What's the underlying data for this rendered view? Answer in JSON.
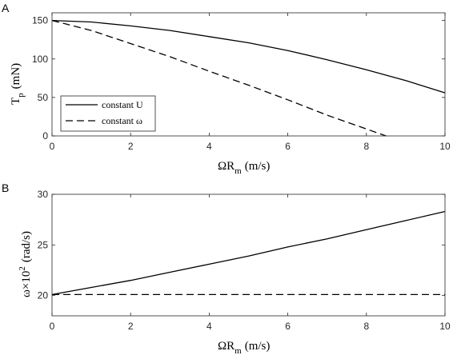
{
  "chart_data": [
    {
      "panel_label": "A",
      "type": "line",
      "xlabel": "ΩR",
      "xlabel_sub": "m",
      "xlabel_unit": "(m/s)",
      "ylabel": "T",
      "ylabel_sub": "p",
      "ylabel_unit": "(mN)",
      "xlim": [
        0,
        10
      ],
      "ylim": [
        0,
        160
      ],
      "xticks": [
        "0",
        "2",
        "4",
        "6",
        "8",
        "10"
      ],
      "yticks": [
        "0",
        "50",
        "100",
        "150"
      ],
      "legend_position": "bottom-left",
      "series": [
        {
          "name": "constant U",
          "style": "solid",
          "x": [
            0,
            1,
            2,
            3,
            4,
            5,
            6,
            7,
            8,
            9,
            10
          ],
          "y": [
            150,
            148,
            143,
            137,
            129,
            121,
            111,
            99,
            86,
            72,
            56
          ]
        },
        {
          "name": "constant ω",
          "style": "dashed",
          "x": [
            0,
            1,
            2,
            3,
            4,
            5,
            6,
            7,
            8,
            8.5
          ],
          "y": [
            150,
            137,
            120,
            103,
            84,
            66,
            47,
            27,
            9,
            0
          ]
        }
      ]
    },
    {
      "panel_label": "B",
      "type": "line",
      "xlabel": "ΩR",
      "xlabel_sub": "m",
      "xlabel_unit": "(m/s)",
      "ylabel": "ω×10",
      "ylabel_sup": "2",
      "ylabel_unit": "(rad/s)",
      "xlim": [
        0,
        10
      ],
      "ylim": [
        18,
        30
      ],
      "xticks": [
        "0",
        "2",
        "4",
        "6",
        "8",
        "10"
      ],
      "yticks": [
        "20",
        "25",
        "30"
      ],
      "series": [
        {
          "style": "solid",
          "x": [
            0,
            1,
            2,
            3,
            4,
            5,
            6,
            7,
            8,
            9,
            10
          ],
          "y": [
            20.1,
            20.8,
            21.5,
            22.3,
            23.1,
            23.9,
            24.8,
            25.6,
            26.5,
            27.4,
            28.3
          ]
        },
        {
          "style": "dashed",
          "x": [
            0,
            10
          ],
          "y": [
            20.1,
            20.1
          ]
        }
      ]
    }
  ]
}
